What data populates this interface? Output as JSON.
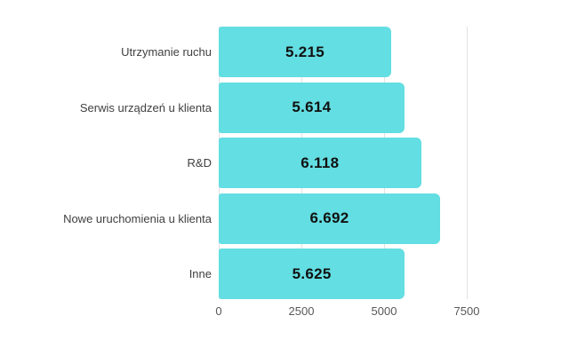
{
  "chart_data": {
    "type": "bar",
    "orientation": "horizontal",
    "title": "",
    "xlabel": "",
    "ylabel": "",
    "categories": [
      "Utrzymanie ruchu",
      "Serwis urządzeń u klienta",
      "R&D",
      "Nowe uruchomienia u klienta",
      "Inne"
    ],
    "values": [
      5215,
      5614,
      6118,
      6692,
      5625
    ],
    "value_labels": [
      "5.215",
      "5.614",
      "6.118",
      "6.692",
      "5.625"
    ],
    "x_ticks": [
      0,
      2500,
      5000,
      7500
    ],
    "x_tick_labels": [
      "0",
      "2500",
      "5000",
      "7500"
    ],
    "xlim": [
      0,
      7500
    ],
    "grid": true,
    "legend": false,
    "colors": {
      "bar_fill": "#63dee2",
      "gridline": "#e2e2e2",
      "value_text": "#111111",
      "category_text": "#3f3f3f",
      "axis_text": "#585858",
      "background": "#ffffff"
    }
  }
}
